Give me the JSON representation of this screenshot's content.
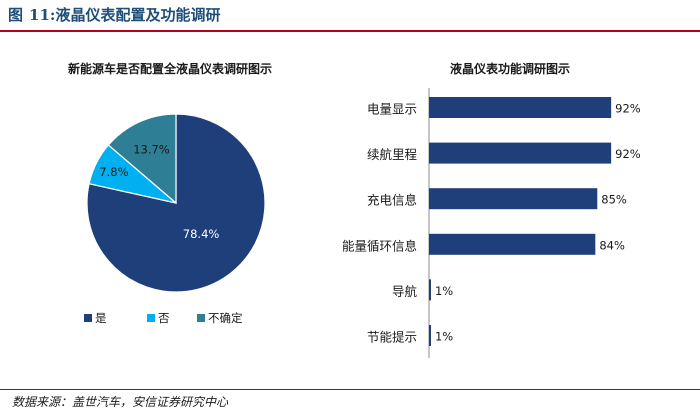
{
  "figure": {
    "label": "图",
    "number": "11:",
    "title": "液晶仪表配置及功能调研",
    "source": "数据来源：盖世汽车，安信证券研究中心"
  },
  "chart_data": [
    {
      "type": "pie",
      "title": "新能源车是否配置全液晶仪表调研图示",
      "slices": [
        {
          "name": "是",
          "value": 78.4,
          "label": "78.4%",
          "color": "#1f3f7a"
        },
        {
          "name": "否",
          "value": 7.8,
          "label": "7.8%",
          "color": "#00b0f0"
        },
        {
          "name": "不确定",
          "value": 13.7,
          "label": "13.7%",
          "color": "#2e7f96"
        }
      ],
      "legend_position": "bottom"
    },
    {
      "type": "bar",
      "orientation": "horizontal",
      "title": "液晶仪表功能调研图示",
      "categories": [
        "电量显示",
        "续航里程",
        "充电信息",
        "能量循环信息",
        "导航",
        "节能提示"
      ],
      "values": [
        92,
        92,
        85,
        84,
        1,
        1
      ],
      "labels": [
        "92%",
        "92%",
        "85%",
        "84%",
        "1%",
        "1%"
      ],
      "xlim": [
        0,
        100
      ],
      "color": "#1f3f7a",
      "grid": false
    }
  ]
}
